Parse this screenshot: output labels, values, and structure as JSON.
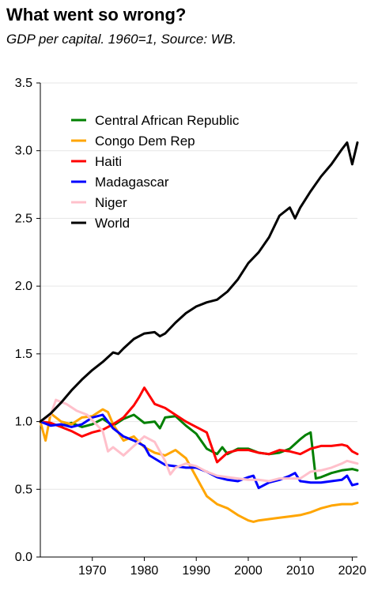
{
  "chart_data": {
    "type": "line",
    "title": "What went so wrong?",
    "subtitle": "GDP per capital. 1960=1, Source: WB.",
    "xlabel": "",
    "ylabel": "",
    "xlim": [
      1960,
      2021
    ],
    "ylim": [
      0,
      3.5
    ],
    "x_ticks": [
      1970,
      1980,
      1990,
      2000,
      2010,
      2020
    ],
    "y_ticks": [
      "0.0",
      "0.5",
      "1.0",
      "1.5",
      "2.0",
      "2.5",
      "3.0",
      "3.5"
    ],
    "grid": "horizontal",
    "legend_position": "top-left",
    "series": [
      {
        "name": "Central African Republic",
        "color": "#008000",
        "x": [
          1960,
          1962,
          1964,
          1966,
          1968,
          1970,
          1972,
          1974,
          1976,
          1978,
          1980,
          1982,
          1983,
          1984,
          1986,
          1988,
          1990,
          1992,
          1994,
          1995,
          1996,
          1998,
          2000,
          2002,
          2004,
          2006,
          2008,
          2010,
          2011,
          2012,
          2013,
          2014,
          2016,
          2018,
          2020,
          2021
        ],
        "values": [
          1.0,
          0.98,
          0.97,
          0.99,
          0.96,
          0.98,
          1.02,
          0.97,
          1.02,
          1.05,
          0.99,
          1.0,
          0.95,
          1.03,
          1.04,
          0.97,
          0.91,
          0.8,
          0.76,
          0.81,
          0.76,
          0.8,
          0.8,
          0.77,
          0.76,
          0.77,
          0.8,
          0.87,
          0.9,
          0.92,
          0.58,
          0.59,
          0.62,
          0.64,
          0.65,
          0.64
        ]
      },
      {
        "name": "Congo Dem Rep",
        "color": "#FFA500",
        "x": [
          1960,
          1961,
          1962,
          1964,
          1966,
          1968,
          1970,
          1972,
          1973,
          1974,
          1976,
          1978,
          1980,
          1982,
          1984,
          1986,
          1988,
          1990,
          1992,
          1994,
          1996,
          1998,
          2000,
          2001,
          2002,
          2004,
          2006,
          2008,
          2010,
          2012,
          2014,
          2016,
          2018,
          2020,
          2021
        ],
        "values": [
          1.0,
          0.86,
          1.06,
          1.0,
          0.98,
          1.03,
          1.04,
          1.09,
          1.07,
          0.98,
          0.86,
          0.89,
          0.81,
          0.77,
          0.75,
          0.79,
          0.73,
          0.59,
          0.45,
          0.39,
          0.36,
          0.31,
          0.27,
          0.26,
          0.27,
          0.28,
          0.29,
          0.3,
          0.31,
          0.33,
          0.36,
          0.38,
          0.39,
          0.39,
          0.4
        ]
      },
      {
        "name": "Haiti",
        "color": "#FF0000",
        "x": [
          1960,
          1962,
          1964,
          1966,
          1968,
          1970,
          1972,
          1974,
          1976,
          1978,
          1979,
          1980,
          1982,
          1984,
          1986,
          1988,
          1990,
          1992,
          1993,
          1994,
          1996,
          1998,
          2000,
          2002,
          2004,
          2006,
          2008,
          2010,
          2012,
          2014,
          2016,
          2018,
          2019,
          2020,
          2021
        ],
        "values": [
          1.0,
          0.99,
          0.96,
          0.93,
          0.89,
          0.92,
          0.94,
          0.98,
          1.03,
          1.12,
          1.18,
          1.25,
          1.13,
          1.1,
          1.05,
          1.0,
          0.96,
          0.92,
          0.81,
          0.7,
          0.77,
          0.79,
          0.79,
          0.77,
          0.76,
          0.79,
          0.78,
          0.76,
          0.8,
          0.82,
          0.82,
          0.83,
          0.82,
          0.78,
          0.76
        ]
      },
      {
        "name": "Madagascar",
        "color": "#0000FF",
        "x": [
          1960,
          1962,
          1964,
          1966,
          1968,
          1970,
          1972,
          1974,
          1976,
          1978,
          1980,
          1981,
          1984,
          1986,
          1988,
          1990,
          1992,
          1994,
          1996,
          1998,
          2000,
          2001,
          2002,
          2004,
          2006,
          2008,
          2009,
          2010,
          2012,
          2014,
          2016,
          2018,
          2019,
          2020,
          2021
        ],
        "values": [
          1.0,
          0.97,
          0.98,
          0.96,
          0.98,
          1.03,
          1.05,
          0.95,
          0.89,
          0.86,
          0.82,
          0.75,
          0.68,
          0.67,
          0.66,
          0.66,
          0.63,
          0.59,
          0.57,
          0.56,
          0.59,
          0.6,
          0.51,
          0.55,
          0.57,
          0.6,
          0.62,
          0.56,
          0.55,
          0.55,
          0.56,
          0.57,
          0.6,
          0.53,
          0.54
        ]
      },
      {
        "name": "Niger",
        "color": "#FFC0CB",
        "x": [
          1960,
          1962,
          1963,
          1965,
          1967,
          1969,
          1971,
          1972,
          1973,
          1974,
          1976,
          1978,
          1980,
          1982,
          1984,
          1985,
          1986,
          1988,
          1990,
          1992,
          1994,
          1996,
          1998,
          2000,
          2002,
          2004,
          2006,
          2008,
          2010,
          2012,
          2014,
          2016,
          2018,
          2019,
          2020,
          2021
        ],
        "values": [
          1.0,
          1.05,
          1.16,
          1.13,
          1.08,
          1.05,
          0.97,
          0.93,
          0.78,
          0.81,
          0.75,
          0.82,
          0.89,
          0.85,
          0.71,
          0.61,
          0.66,
          0.69,
          0.67,
          0.63,
          0.6,
          0.59,
          0.58,
          0.57,
          0.57,
          0.56,
          0.58,
          0.58,
          0.58,
          0.63,
          0.64,
          0.66,
          0.69,
          0.71,
          0.7,
          0.69
        ]
      },
      {
        "name": "World",
        "color": "#000000",
        "x": [
          1960,
          1962,
          1964,
          1966,
          1968,
          1970,
          1972,
          1974,
          1975,
          1976,
          1978,
          1980,
          1982,
          1983,
          1984,
          1986,
          1988,
          1990,
          1992,
          1994,
          1996,
          1998,
          2000,
          2002,
          2004,
          2006,
          2008,
          2009,
          2010,
          2012,
          2014,
          2016,
          2018,
          2019,
          2020,
          2021
        ],
        "values": [
          1.0,
          1.06,
          1.14,
          1.23,
          1.31,
          1.38,
          1.44,
          1.51,
          1.5,
          1.54,
          1.61,
          1.65,
          1.66,
          1.63,
          1.65,
          1.73,
          1.8,
          1.85,
          1.88,
          1.9,
          1.96,
          2.05,
          2.17,
          2.25,
          2.36,
          2.52,
          2.58,
          2.5,
          2.58,
          2.7,
          2.81,
          2.9,
          3.01,
          3.06,
          2.9,
          3.06
        ]
      }
    ]
  }
}
